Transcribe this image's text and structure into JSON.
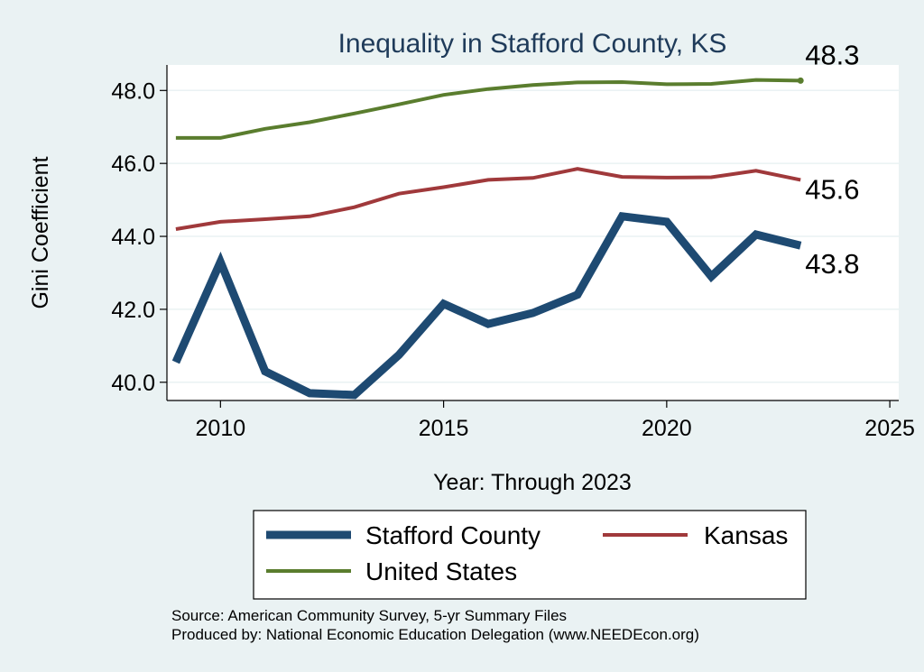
{
  "chart_data": {
    "type": "line",
    "title": "Inequality in Stafford County, KS",
    "xlabel": "Year: Through 2023",
    "ylabel": "Gini Coefficient",
    "xlim": [
      2008.8,
      2025.2
    ],
    "ylim": [
      39.5,
      48.7
    ],
    "xticks": [
      2010,
      2015,
      2020,
      2025
    ],
    "yticks": [
      40,
      42,
      44,
      46,
      48
    ],
    "ytick_labels": [
      "40.0",
      "42.0",
      "44.0",
      "46.0",
      "48.0"
    ],
    "grid": "horizontal",
    "legend_position": "bottom",
    "x": [
      2009,
      2010,
      2011,
      2012,
      2013,
      2014,
      2015,
      2016,
      2017,
      2018,
      2019,
      2020,
      2021,
      2022,
      2023
    ],
    "series": [
      {
        "name": "Stafford County",
        "color": "#1e4a72",
        "end_label": "43.8",
        "values": [
          40.55,
          43.3,
          40.3,
          39.7,
          39.65,
          40.75,
          42.15,
          41.6,
          41.9,
          42.4,
          44.55,
          44.4,
          42.9,
          44.05,
          43.75
        ]
      },
      {
        "name": "Kansas",
        "color": "#a0393b",
        "end_label": "45.6",
        "values": [
          44.2,
          44.4,
          44.47,
          44.55,
          44.8,
          45.17,
          45.35,
          45.55,
          45.6,
          45.85,
          45.63,
          45.61,
          45.62,
          45.8,
          45.55
        ]
      },
      {
        "name": "United States",
        "color": "#5a7d2e",
        "end_label": "48.3",
        "values": [
          46.7,
          46.7,
          46.95,
          47.13,
          47.37,
          47.62,
          47.88,
          48.04,
          48.15,
          48.22,
          48.23,
          48.17,
          48.18,
          48.29,
          48.27
        ]
      }
    ],
    "notes": [
      "Source: American Community Survey, 5-yr Summary Files",
      "Produced by: National Economic Education Delegation (www.NEEDEcon.org)"
    ]
  }
}
